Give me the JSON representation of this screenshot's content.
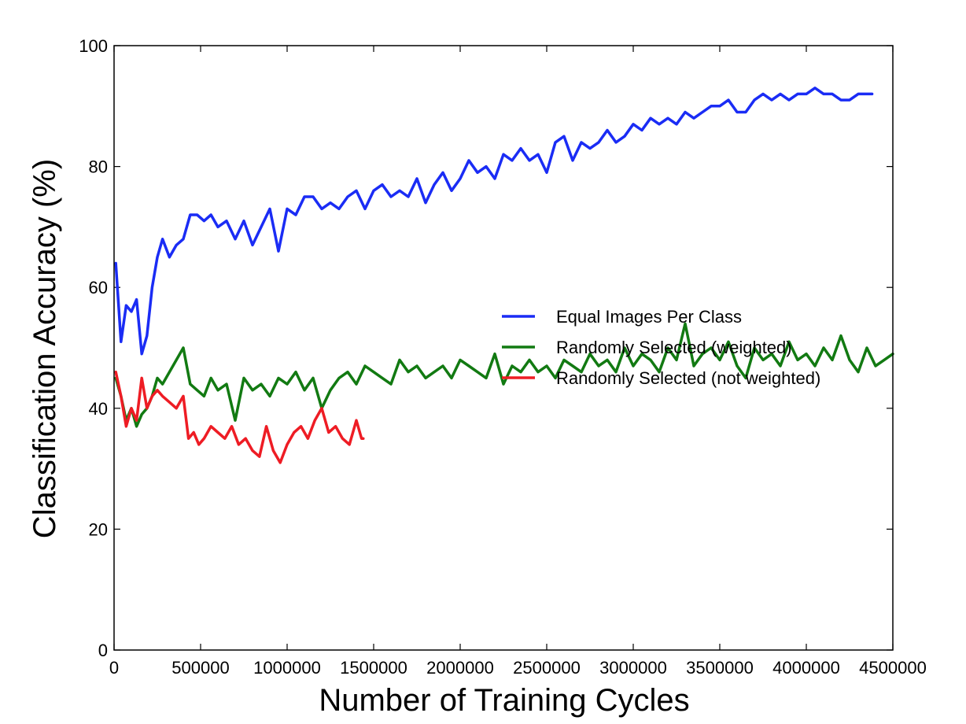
{
  "chart_data": {
    "type": "line",
    "title": "",
    "xlabel": "Number of Training Cycles",
    "ylabel": "Classification Accuracy (%)",
    "xlim": [
      0,
      4500000
    ],
    "ylim": [
      0,
      100
    ],
    "x_ticks": [
      0,
      500000,
      1000000,
      1500000,
      2000000,
      2500000,
      3000000,
      3500000,
      4000000,
      4500000
    ],
    "x_tick_labels": [
      "0",
      "500000",
      "1000000",
      "1500000",
      "2000000",
      "2500000",
      "3000000",
      "3500000",
      "4000000",
      "4500000"
    ],
    "y_ticks": [
      0,
      20,
      40,
      60,
      80,
      100
    ],
    "y_tick_labels": [
      "0",
      "20",
      "40",
      "60",
      "80",
      "100"
    ],
    "grid": false,
    "legend_position": "center-right",
    "series": [
      {
        "name": "Equal Images Per Class",
        "color": "#1a2cf5",
        "x": [
          10000,
          40000,
          70000,
          100000,
          130000,
          160000,
          190000,
          220000,
          250000,
          280000,
          320000,
          360000,
          400000,
          440000,
          480000,
          520000,
          560000,
          600000,
          650000,
          700000,
          750000,
          800000,
          850000,
          900000,
          950000,
          1000000,
          1050000,
          1100000,
          1150000,
          1200000,
          1250000,
          1300000,
          1350000,
          1400000,
          1450000,
          1500000,
          1550000,
          1600000,
          1650000,
          1700000,
          1750000,
          1800000,
          1850000,
          1900000,
          1950000,
          2000000,
          2050000,
          2100000,
          2150000,
          2200000,
          2250000,
          2300000,
          2350000,
          2400000,
          2450000,
          2500000,
          2550000,
          2600000,
          2650000,
          2700000,
          2750000,
          2800000,
          2850000,
          2900000,
          2950000,
          3000000,
          3050000,
          3100000,
          3150000,
          3200000,
          3250000,
          3300000,
          3350000,
          3400000,
          3450000,
          3500000,
          3550000,
          3600000,
          3650000,
          3700000,
          3750000,
          3800000,
          3850000,
          3900000,
          3950000,
          4000000,
          4050000,
          4100000,
          4150000,
          4200000,
          4250000,
          4300000,
          4350000,
          4380000
        ],
        "y": [
          64,
          51,
          57,
          56,
          58,
          49,
          52,
          60,
          65,
          68,
          65,
          67,
          68,
          72,
          72,
          71,
          72,
          70,
          71,
          68,
          71,
          67,
          70,
          73,
          66,
          73,
          72,
          75,
          75,
          73,
          74,
          73,
          75,
          76,
          73,
          76,
          77,
          75,
          76,
          75,
          78,
          74,
          77,
          79,
          76,
          78,
          81,
          79,
          80,
          78,
          82,
          81,
          83,
          81,
          82,
          79,
          84,
          85,
          81,
          84,
          83,
          84,
          86,
          84,
          85,
          87,
          86,
          88,
          87,
          88,
          87,
          89,
          88,
          89,
          90,
          90,
          91,
          89,
          89,
          91,
          92,
          91,
          92,
          91,
          92,
          92,
          93,
          92,
          92,
          91,
          91,
          92,
          92,
          92
        ]
      },
      {
        "name": "Randomly Selected (weighted)",
        "color": "#127a12",
        "x": [
          10000,
          40000,
          70000,
          100000,
          130000,
          160000,
          190000,
          220000,
          250000,
          280000,
          320000,
          360000,
          400000,
          440000,
          480000,
          520000,
          560000,
          600000,
          650000,
          700000,
          750000,
          800000,
          850000,
          900000,
          950000,
          1000000,
          1050000,
          1100000,
          1150000,
          1200000,
          1250000,
          1300000,
          1350000,
          1400000,
          1450000,
          1500000,
          1550000,
          1600000,
          1650000,
          1700000,
          1750000,
          1800000,
          1850000,
          1900000,
          1950000,
          2000000,
          2050000,
          2100000,
          2150000,
          2200000,
          2250000,
          2300000,
          2350000,
          2400000,
          2450000,
          2500000,
          2550000,
          2600000,
          2650000,
          2700000,
          2750000,
          2800000,
          2850000,
          2900000,
          2950000,
          3000000,
          3050000,
          3100000,
          3150000,
          3200000,
          3250000,
          3300000,
          3350000,
          3400000,
          3450000,
          3500000,
          3550000,
          3600000,
          3650000,
          3700000,
          3750000,
          3800000,
          3850000,
          3900000,
          3950000,
          4000000,
          4050000,
          4100000,
          4150000,
          4200000,
          4250000,
          4300000,
          4350000,
          4400000,
          4450000,
          4500000
        ],
        "y": [
          45,
          42,
          38,
          40,
          37,
          39,
          40,
          42,
          45,
          44,
          46,
          48,
          50,
          44,
          43,
          42,
          45,
          43,
          44,
          38,
          45,
          43,
          44,
          42,
          45,
          44,
          46,
          43,
          45,
          40,
          43,
          45,
          46,
          44,
          47,
          46,
          45,
          44,
          48,
          46,
          47,
          45,
          46,
          47,
          45,
          48,
          47,
          46,
          45,
          49,
          44,
          47,
          46,
          48,
          46,
          47,
          45,
          48,
          47,
          46,
          49,
          47,
          48,
          46,
          50,
          47,
          49,
          48,
          46,
          50,
          48,
          54,
          47,
          49,
          50,
          48,
          51,
          47,
          45,
          50,
          48,
          49,
          47,
          51,
          48,
          49,
          47,
          50,
          48,
          52,
          48,
          46,
          50,
          47,
          48,
          49
        ]
      },
      {
        "name": "Randomly Selected (not weighted)",
        "color": "#ee1c24",
        "x": [
          10000,
          40000,
          70000,
          100000,
          130000,
          160000,
          190000,
          220000,
          250000,
          280000,
          320000,
          360000,
          400000,
          430000,
          460000,
          490000,
          520000,
          560000,
          600000,
          640000,
          680000,
          720000,
          760000,
          800000,
          840000,
          880000,
          920000,
          960000,
          1000000,
          1040000,
          1080000,
          1120000,
          1160000,
          1200000,
          1240000,
          1280000,
          1320000,
          1360000,
          1400000,
          1430000,
          1440000
        ],
        "y": [
          46,
          42,
          37,
          40,
          38,
          45,
          40,
          42,
          43,
          42,
          41,
          40,
          42,
          35,
          36,
          34,
          35,
          37,
          36,
          35,
          37,
          34,
          35,
          33,
          32,
          37,
          33,
          31,
          34,
          36,
          37,
          35,
          38,
          40,
          36,
          37,
          35,
          34,
          38,
          35,
          35
        ]
      }
    ]
  }
}
